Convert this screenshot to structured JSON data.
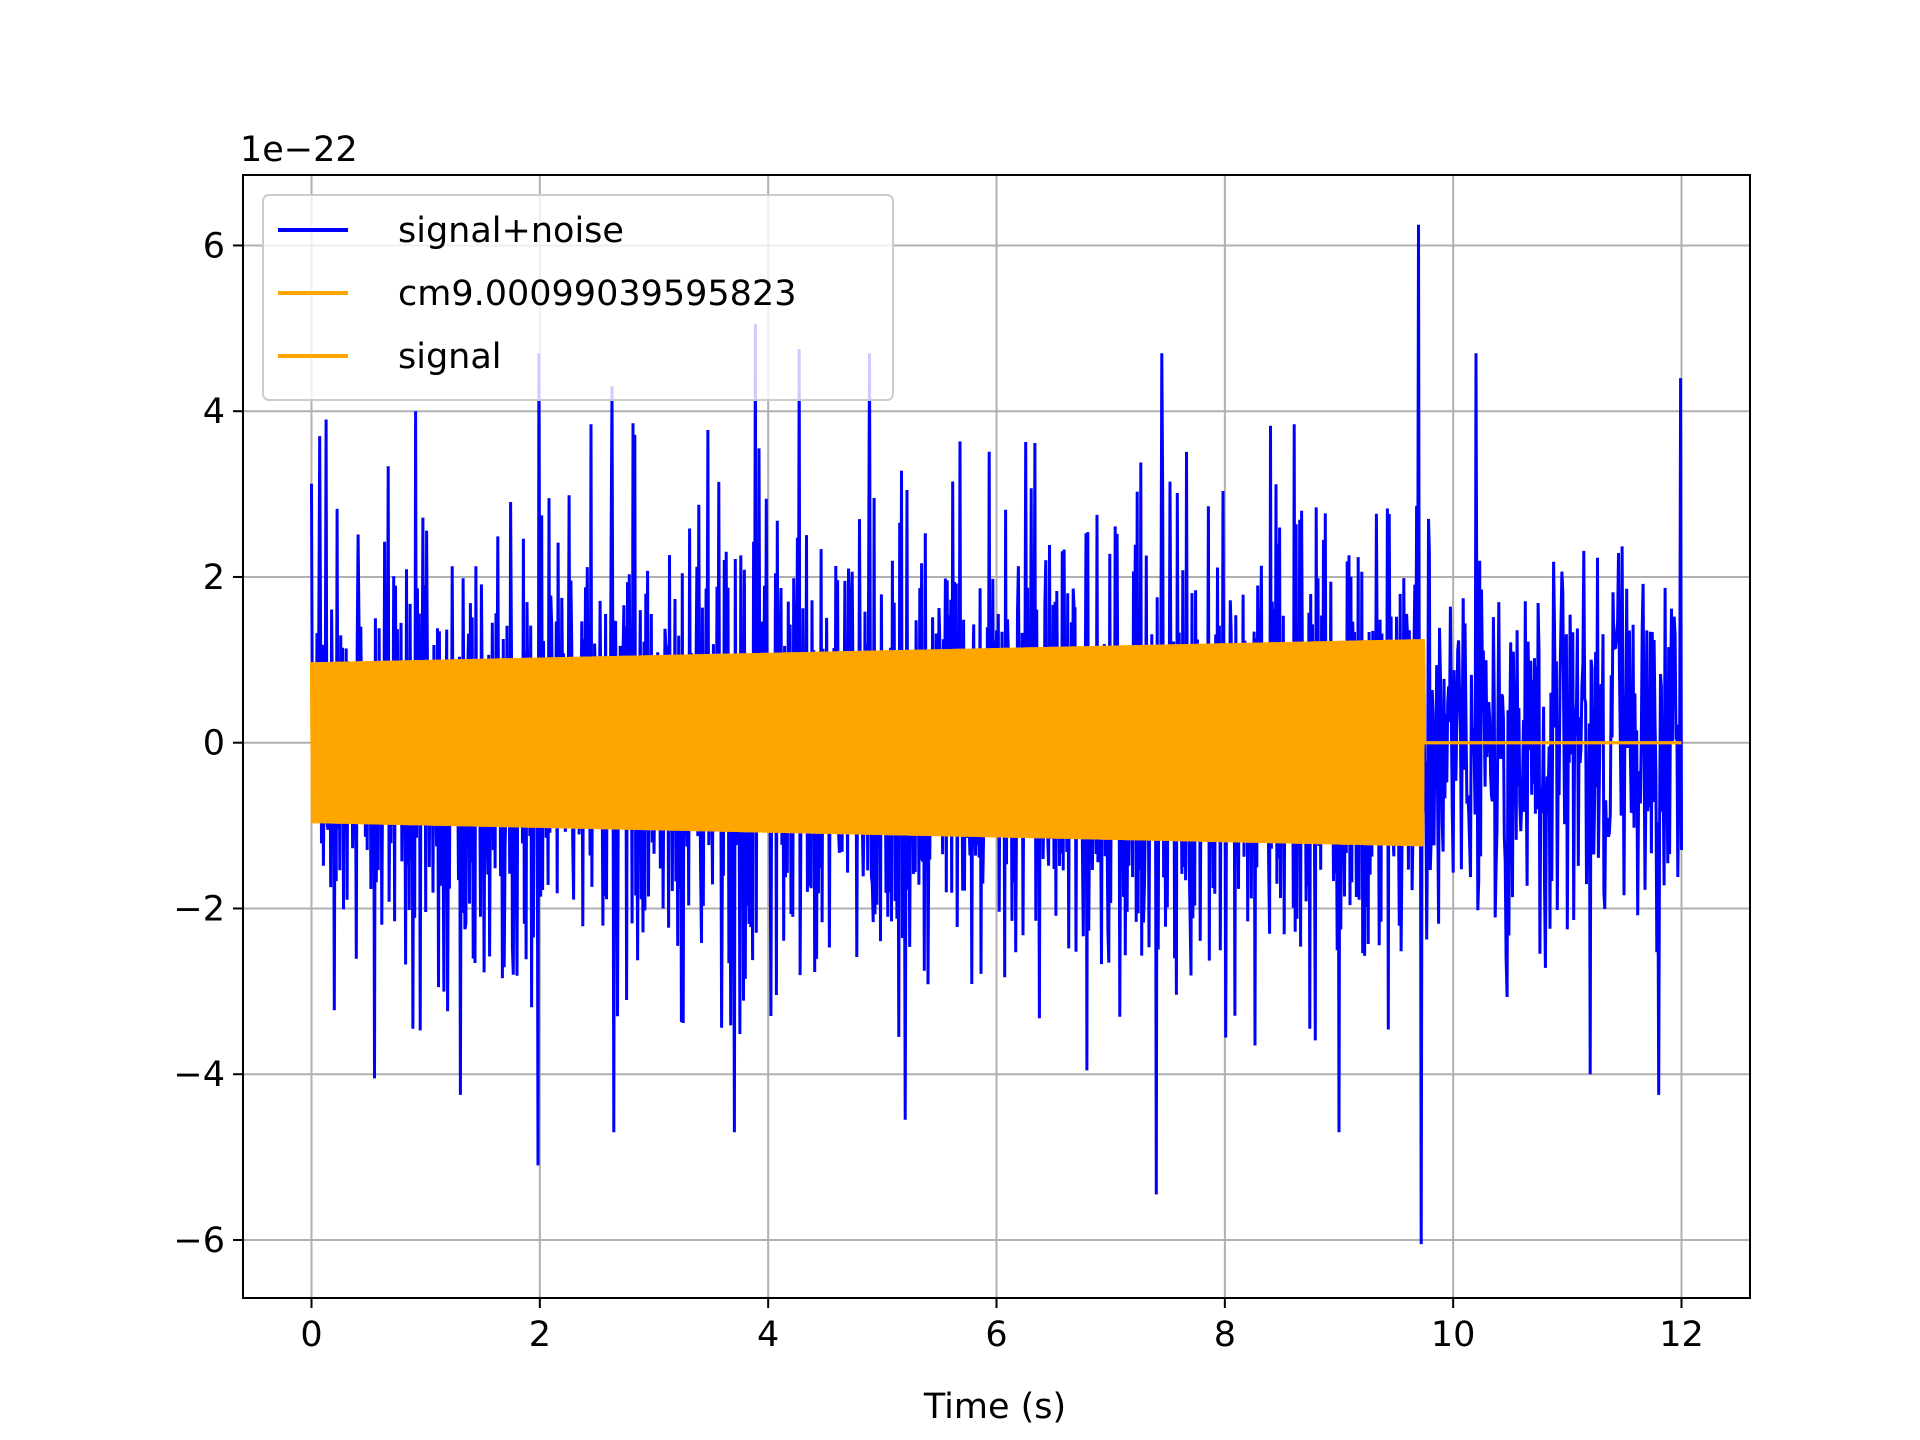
{
  "chart_data": {
    "type": "line",
    "title": "",
    "xlabel": "Time (s)",
    "ylabel": "",
    "offset_label": "1e−22",
    "xlim": [
      -0.6,
      12.6
    ],
    "ylim": [
      -6.7,
      6.85
    ],
    "xticks": [
      0,
      2,
      4,
      6,
      8,
      10,
      12
    ],
    "xtick_labels": [
      "0",
      "2",
      "4",
      "6",
      "8",
      "10",
      "12"
    ],
    "yticks": [
      -6,
      -4,
      -2,
      0,
      2,
      4,
      6
    ],
    "ytick_labels": [
      "−6",
      "−4",
      "−2",
      "0",
      "2",
      "4",
      "6"
    ],
    "grid": true,
    "legend": {
      "position": "top-left",
      "entries": [
        "signal+noise",
        "cm9.00099039595823",
        "signal"
      ]
    },
    "series": [
      {
        "name": "signal+noise",
        "color": "#0000ff",
        "description_values": "dense noisy oscillation between 0 and 12 s, typical excursions about ±3, extremes from -6.0 to 6.25 (x1e-22)",
        "x_range": [
          0,
          12
        ],
        "peaks": [
          {
            "x": 0.07,
            "y": 3.7
          },
          {
            "x": 0.13,
            "y": 3.9
          },
          {
            "x": 0.91,
            "y": 4.0
          },
          {
            "x": 1.99,
            "y": 4.7
          },
          {
            "x": 2.63,
            "y": 4.3
          },
          {
            "x": 3.89,
            "y": 5.05
          },
          {
            "x": 4.27,
            "y": 4.75
          },
          {
            "x": 4.89,
            "y": 4.7
          },
          {
            "x": 7.45,
            "y": 4.7
          },
          {
            "x": 9.7,
            "y": 6.25
          },
          {
            "x": 10.2,
            "y": 4.7
          },
          {
            "x": 11.99,
            "y": 4.4
          }
        ],
        "troughs": [
          {
            "x": 0.55,
            "y": -4.05
          },
          {
            "x": 1.3,
            "y": -4.25
          },
          {
            "x": 1.98,
            "y": -5.1
          },
          {
            "x": 2.65,
            "y": -4.7
          },
          {
            "x": 3.7,
            "y": -4.7
          },
          {
            "x": 5.2,
            "y": -4.55
          },
          {
            "x": 7.4,
            "y": -5.45
          },
          {
            "x": 9.0,
            "y": -4.7
          },
          {
            "x": 9.72,
            "y": -6.05
          },
          {
            "x": 11.2,
            "y": -4.0
          },
          {
            "x": 11.8,
            "y": -4.25
          }
        ]
      },
      {
        "name": "cm9.00099039595823",
        "color": "#ffa500",
        "description_values": "constant-frequency sinusoid with amplitude rising from about 0.97 at 0 s to about 1.25 at 9.74 s, then 0 until 12 s",
        "envelope": [
          {
            "x": 0,
            "amplitude": 0.97
          },
          {
            "x": 9.74,
            "amplitude": 1.25
          },
          {
            "x": 9.75,
            "amplitude": 0
          },
          {
            "x": 12,
            "amplitude": 0
          }
        ]
      },
      {
        "name": "signal",
        "color": "#ffa500",
        "description_values": "same waveform as cm9.00099039595823",
        "envelope": [
          {
            "x": 0,
            "amplitude": 0.97
          },
          {
            "x": 9.74,
            "amplitude": 1.25
          },
          {
            "x": 9.75,
            "amplitude": 0
          },
          {
            "x": 12,
            "amplitude": 0
          }
        ]
      }
    ]
  }
}
